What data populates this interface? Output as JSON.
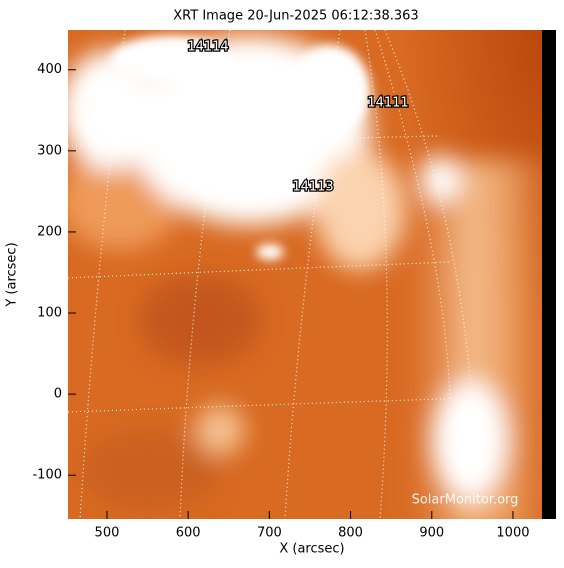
{
  "chart_data": {
    "type": "image",
    "title": "XRT Image 20-Jun-2025 06:12:38.363",
    "x_label": "X (arcsec)",
    "y_label": "Y (arcsec)",
    "xlim": [
      452,
      1053
    ],
    "ylim": [
      -154,
      449
    ],
    "xticks": [
      500,
      600,
      700,
      800,
      900,
      1000
    ],
    "yticks": [
      -100,
      0,
      100,
      200,
      300,
      400
    ],
    "annotations": [
      "14114",
      "14111",
      "14113"
    ],
    "watermark": "SolarMonitor.org"
  }
}
